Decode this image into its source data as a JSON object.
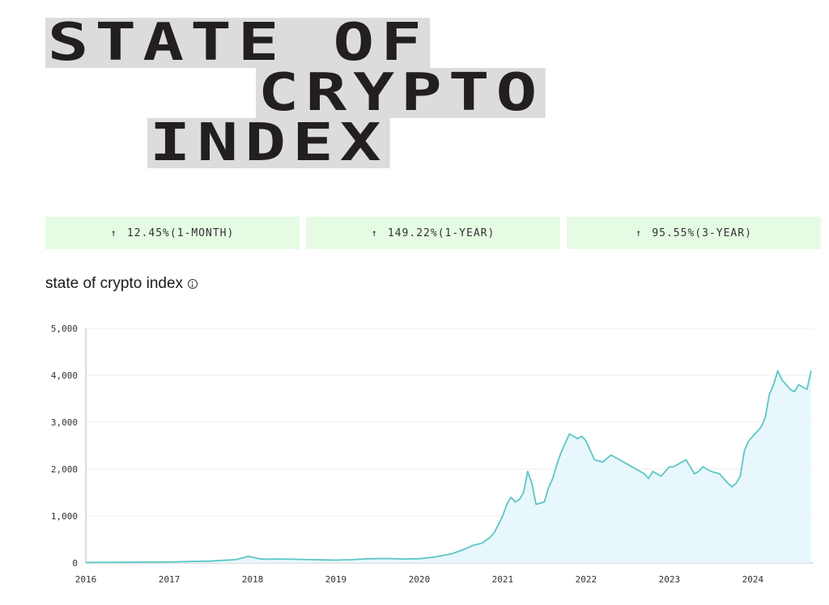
{
  "hero": {
    "line1": "STATE OF",
    "line2": "CRYPTO",
    "line3": "INDEX"
  },
  "stats": [
    {
      "arrow": "↑",
      "label": "12.45%(1-MONTH)"
    },
    {
      "arrow": "↑",
      "label": "149.22%(1-YEAR)"
    },
    {
      "arrow": "↑",
      "label": "95.55%(3-YEAR)"
    }
  ],
  "chart_title": "state of crypto index",
  "colors": {
    "line": "#5cc6c6",
    "area": "#e8f7fb",
    "grid": "#ececec",
    "hero_bg": "#dcdcdc",
    "stat_bg": "#e6fbe4"
  },
  "icons": {
    "info": "info-circle-icon",
    "arrow": "arrow-up-icon"
  },
  "chart_data": {
    "type": "area",
    "title": "state of crypto index",
    "xlabel": "",
    "ylabel": "",
    "xlim": [
      2016.0,
      2024.72
    ],
    "ylim": [
      0,
      5000
    ],
    "yticks": [
      0,
      1000,
      2000,
      3000,
      4000,
      5000
    ],
    "ytick_labels": [
      "0",
      "1,000",
      "2,000",
      "3,000",
      "4,000",
      "5,000"
    ],
    "xticks": [
      2016,
      2017,
      2018,
      2019,
      2020,
      2021,
      2022,
      2023,
      2024
    ],
    "xtick_labels": [
      "2016",
      "2017",
      "2018",
      "2019",
      "2020",
      "2021",
      "2022",
      "2023",
      "2024"
    ],
    "grid": true,
    "legend": "none",
    "series": [
      {
        "x": [
          2016.0,
          2016.5,
          2017.0,
          2017.5,
          2017.8,
          2017.95,
          2018.0,
          2018.08,
          2018.15,
          2018.3,
          2018.5,
          2018.7,
          2018.85,
          2019.0,
          2019.2,
          2019.4,
          2019.6,
          2019.8,
          2020.0,
          2020.2,
          2020.4,
          2020.55,
          2020.65,
          2020.75,
          2020.85,
          2020.9,
          2021.0,
          2021.05,
          2021.1,
          2021.15,
          2021.2,
          2021.25,
          2021.3,
          2021.35,
          2021.4,
          2021.5,
          2021.55,
          2021.6,
          2021.65,
          2021.7,
          2021.8,
          2021.9,
          2021.95,
          2022.0,
          2022.1,
          2022.2,
          2022.3,
          2022.35,
          2022.4,
          2022.5,
          2022.6,
          2022.7,
          2022.75,
          2022.8,
          2022.9,
          2023.0,
          2023.05,
          2023.1,
          2023.2,
          2023.25,
          2023.3,
          2023.35,
          2023.4,
          2023.45,
          2023.5,
          2023.6,
          2023.7,
          2023.75,
          2023.8,
          2023.85,
          2023.9,
          2023.95,
          2024.0,
          2024.1,
          2024.15,
          2024.2,
          2024.25,
          2024.3,
          2024.35,
          2024.4,
          2024.45,
          2024.5,
          2024.55,
          2024.6,
          2024.65,
          2024.7
        ],
        "y": [
          10,
          15,
          20,
          40,
          70,
          140,
          120,
          90,
          80,
          85,
          80,
          70,
          65,
          60,
          70,
          90,
          95,
          85,
          90,
          130,
          200,
          300,
          380,
          420,
          550,
          650,
          1000,
          1250,
          1400,
          1300,
          1350,
          1500,
          1950,
          1700,
          1250,
          1300,
          1600,
          1800,
          2100,
          2350,
          2750,
          2650,
          2700,
          2600,
          2200,
          2150,
          2300,
          2250,
          2200,
          2100,
          2000,
          1900,
          1800,
          1950,
          1850,
          2050,
          2050,
          2100,
          2200,
          2050,
          1900,
          1950,
          2050,
          2000,
          1950,
          1900,
          1700,
          1620,
          1700,
          1850,
          2400,
          2600,
          2700,
          2900,
          3100,
          3600,
          3800,
          4100,
          3900,
          3800,
          3700,
          3650,
          3800,
          3750,
          3700,
          4100
        ]
      }
    ]
  }
}
